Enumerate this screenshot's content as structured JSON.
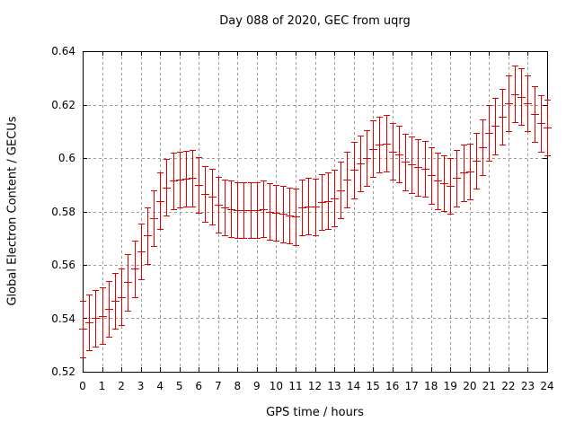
{
  "title": "Day 088 of 2020, GEC from uqrg",
  "axes": {
    "x": {
      "label": "GPS time / hours",
      "min": 0,
      "max": 24,
      "ticks": [
        0,
        1,
        2,
        3,
        4,
        5,
        6,
        7,
        8,
        9,
        10,
        11,
        12,
        13,
        14,
        15,
        16,
        17,
        18,
        19,
        20,
        21,
        22,
        23,
        24
      ]
    },
    "y": {
      "label": "Global Electron Content / GECUs",
      "min": 0.52,
      "max": 0.64,
      "ticks": [
        0.52,
        0.54,
        0.56,
        0.58,
        0.6,
        0.62,
        0.64
      ],
      "tick_labels": [
        "0.52",
        "0.54",
        "0.56",
        "0.58",
        "0.6",
        "0.62",
        "0.64"
      ]
    }
  },
  "colors": {
    "series": "#e00000",
    "grid": "#9a9a9a",
    "axis": "#000000",
    "text": "#000000",
    "background": "#ffffff"
  },
  "chart_data": {
    "type": "errorbar",
    "title": "Day 088 of 2020, GEC from uqrg",
    "xlabel": "GPS time / hours",
    "ylabel": "Global Electron Content / GECUs",
    "xlim": [
      0,
      24
    ],
    "ylim": [
      0.52,
      0.64
    ],
    "grid": true,
    "legend": "none",
    "series_name": "GEC from uqrg",
    "sample_interval_hours": 0.3333,
    "x": [
      0,
      0.33,
      0.67,
      1,
      1.33,
      1.67,
      2,
      2.33,
      2.67,
      3,
      3.33,
      3.67,
      4,
      4.33,
      4.67,
      5,
      5.33,
      5.67,
      6,
      6.33,
      6.67,
      7,
      7.33,
      7.67,
      8,
      8.33,
      8.67,
      9,
      9.33,
      9.67,
      10,
      10.33,
      10.67,
      11,
      11.33,
      11.67,
      12,
      12.33,
      12.67,
      13,
      13.33,
      13.67,
      14,
      14.33,
      14.67,
      15,
      15.33,
      15.67,
      16,
      16.33,
      16.67,
      17,
      17.33,
      17.67,
      18,
      18.33,
      18.67,
      19,
      19.33,
      19.67,
      20,
      20.33,
      20.67,
      21,
      21.33,
      21.67,
      22,
      22.33,
      22.67,
      23,
      23.33,
      23.67,
      24
    ],
    "y": [
      0.536,
      0.5385,
      0.54,
      0.541,
      0.5435,
      0.5465,
      0.548,
      0.5535,
      0.5585,
      0.565,
      0.571,
      0.5775,
      0.584,
      0.589,
      0.5915,
      0.592,
      0.5922,
      0.5925,
      0.59,
      0.5865,
      0.5855,
      0.5825,
      0.5815,
      0.581,
      0.5805,
      0.5805,
      0.5805,
      0.5805,
      0.581,
      0.58,
      0.5795,
      0.579,
      0.5785,
      0.578,
      0.5815,
      0.582,
      0.5817,
      0.5835,
      0.584,
      0.585,
      0.588,
      0.592,
      0.5955,
      0.598,
      0.6,
      0.6035,
      0.605,
      0.6055,
      0.6025,
      0.6015,
      0.5985,
      0.5975,
      0.5965,
      0.596,
      0.5935,
      0.5915,
      0.5905,
      0.5895,
      0.5925,
      0.5945,
      0.595,
      0.599,
      0.604,
      0.6095,
      0.612,
      0.6155,
      0.6205,
      0.624,
      0.623,
      0.6205,
      0.6165,
      0.613,
      0.6115
    ],
    "yerr": 0.0105
  }
}
